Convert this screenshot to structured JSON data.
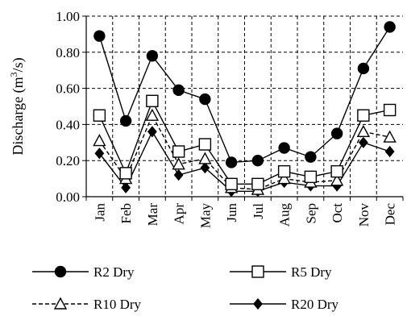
{
  "chart_data": {
    "type": "line",
    "title": "",
    "xlabel": "",
    "ylabel": "Discharge (m",
    "ylabel_sup": "3",
    "ylabel_tail": "/s)",
    "ylim": [
      0,
      1
    ],
    "yticks": [
      0,
      0.2,
      0.4,
      0.6,
      0.8,
      1.0
    ],
    "ytick_labels": [
      "0.00",
      "0.20",
      "0.40",
      "0.60",
      "0.80",
      "1.00"
    ],
    "grid": true,
    "legend_position": "bottom",
    "categories": [
      "Jan",
      "Feb",
      "Mar",
      "Apr",
      "May",
      "Jun",
      "Jul",
      "Aug",
      "Sep",
      "Oct",
      "Nov",
      "Dec"
    ],
    "series": [
      {
        "name": "R2 Dry",
        "marker": "circle",
        "line": "solid",
        "values": [
          0.89,
          0.42,
          0.78,
          0.59,
          0.54,
          0.19,
          0.2,
          0.27,
          0.22,
          0.35,
          0.71,
          0.94
        ]
      },
      {
        "name": "R5 Dry",
        "marker": "square",
        "line": "solid",
        "values": [
          0.45,
          0.13,
          0.53,
          0.25,
          0.29,
          0.07,
          0.07,
          0.14,
          0.11,
          0.14,
          0.45,
          0.48
        ]
      },
      {
        "name": "R10 Dry",
        "marker": "triangle",
        "line": "dashed",
        "values": [
          0.31,
          0.1,
          0.45,
          0.18,
          0.21,
          0.05,
          0.04,
          0.1,
          0.08,
          0.09,
          0.36,
          0.33
        ]
      },
      {
        "name": "R20 Dry",
        "marker": "diamond",
        "line": "solid",
        "values": [
          0.24,
          0.05,
          0.36,
          0.12,
          0.16,
          0.03,
          0.03,
          0.08,
          0.06,
          0.06,
          0.3,
          0.25
        ]
      }
    ]
  }
}
